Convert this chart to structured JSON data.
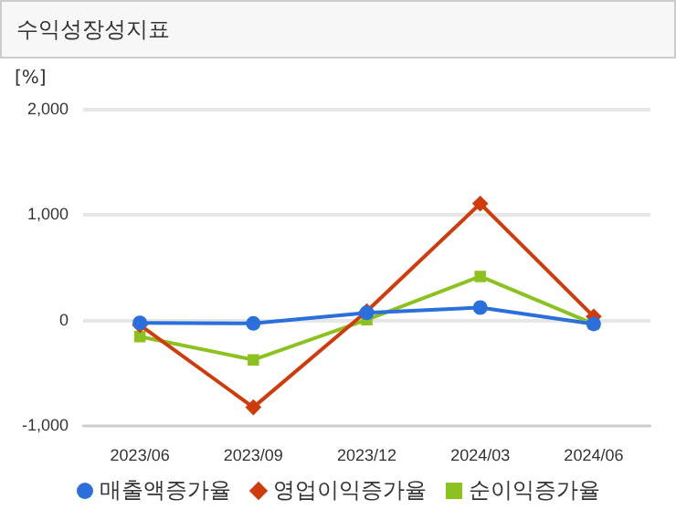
{
  "chart_data": {
    "type": "line",
    "title": "수익성장성지표",
    "ylabel": "[%]",
    "categories": [
      "2023/06",
      "2023/09",
      "2023/12",
      "2024/03",
      "2024/06"
    ],
    "series": [
      {
        "name": "매출액증가율",
        "color": "#2a6fdb",
        "marker": "circle",
        "values": [
          -20,
          -25,
          75,
          125,
          -30
        ]
      },
      {
        "name": "영업이익증가율",
        "color": "#d13b0c",
        "marker": "diamond",
        "values": [
          -40,
          -820,
          90,
          1110,
          40
        ]
      },
      {
        "name": "순이익증가율",
        "color": "#8cc21f",
        "marker": "square",
        "values": [
          -150,
          -370,
          10,
          420,
          -30
        ]
      }
    ],
    "ylim": [
      -1000,
      2000
    ],
    "yticks": [
      {
        "value": -1000,
        "label": "-1,000"
      },
      0,
      {
        "value": 1000,
        "label": "1,000"
      },
      {
        "value": 2000,
        "label": "2,000"
      }
    ],
    "grid": "y",
    "legend": "bottom"
  }
}
